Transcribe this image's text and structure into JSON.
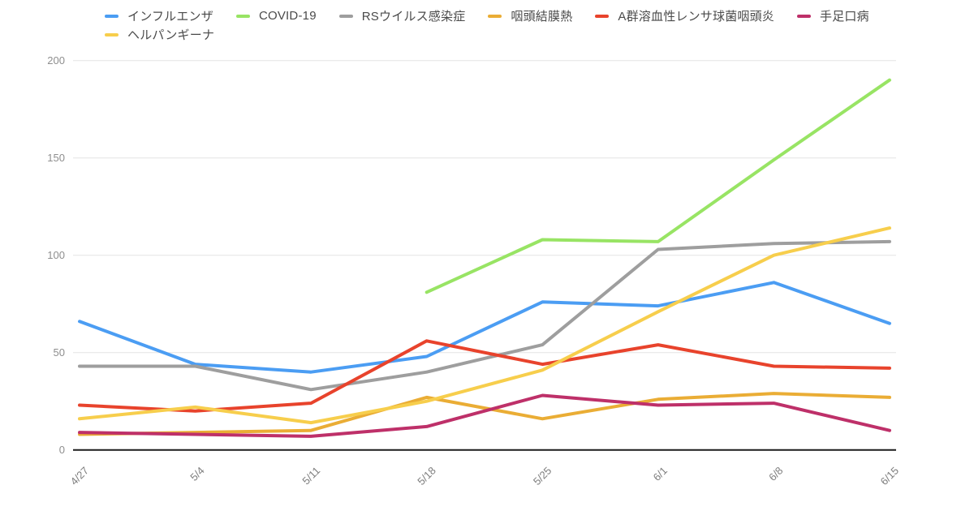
{
  "legend": {
    "row_break_after_index": 5
  },
  "chart_data": {
    "type": "line",
    "title": "",
    "xlabel": "",
    "ylabel": "",
    "ylim": [
      0,
      200
    ],
    "y_ticks": [
      0,
      50,
      100,
      150,
      200
    ],
    "grid": true,
    "legend_position": "top-left",
    "categories": [
      "4/27",
      "5/4",
      "5/11",
      "5/18",
      "5/25",
      "6/1",
      "6/8",
      "6/15"
    ],
    "series": [
      {
        "id": "influenza",
        "name": "インフルエンザ",
        "color": "#4b9df3",
        "values": [
          66,
          44,
          40,
          48,
          76,
          74,
          86,
          65
        ]
      },
      {
        "id": "covid19",
        "name": "COVID-19",
        "color": "#98e464",
        "values": [
          null,
          null,
          null,
          81,
          108,
          107,
          149,
          190
        ]
      },
      {
        "id": "rs-virus",
        "name": "RSウイルス感染症",
        "color": "#9e9e9e",
        "values": [
          43,
          43,
          31,
          40,
          54,
          103,
          106,
          107
        ]
      },
      {
        "id": "pharyngoconjunctival-fever",
        "name": "咽頭結膜熱",
        "color": "#eaad35",
        "values": [
          8,
          9,
          10,
          27,
          16,
          26,
          29,
          27
        ]
      },
      {
        "id": "strep-a-pharyngitis",
        "name": "A群溶血性レンサ球菌咽頭炎",
        "color": "#e8432c",
        "values": [
          23,
          20,
          24,
          56,
          44,
          54,
          43,
          42
        ]
      },
      {
        "id": "hand-foot-mouth",
        "name": "手足口病",
        "color": "#be3069",
        "values": [
          9,
          8,
          7,
          12,
          28,
          23,
          24,
          10
        ]
      },
      {
        "id": "herpangina",
        "name": "ヘルパンギーナ",
        "color": "#f7ce4c",
        "values": [
          16,
          22,
          14,
          25,
          41,
          71,
          100,
          114
        ]
      }
    ]
  },
  "style_colors": {
    "grid_line": "#e4e4e4",
    "zero_axis_line": "#1c1c1c",
    "y_tick_text": "#8e8e8e",
    "x_tick_text": "#7d7d7d",
    "legend_text": "#4a4a4a",
    "background": "#ffffff"
  }
}
